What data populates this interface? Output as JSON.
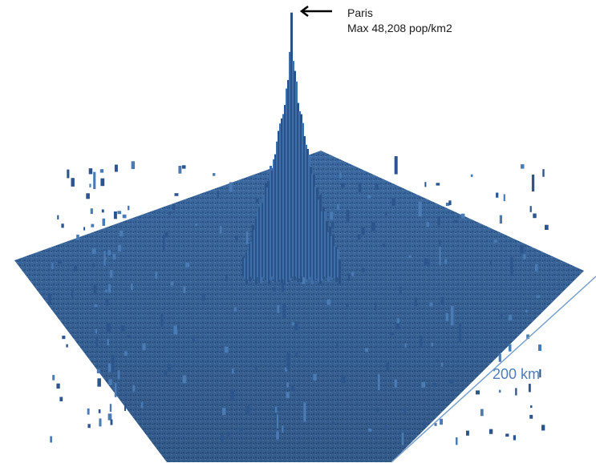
{
  "annotation": {
    "place": "Paris",
    "max_label": "Max 48,208 pop/km2"
  },
  "scale_bar": {
    "label": "200 km"
  },
  "colors": {
    "surface": "#3f6fa8",
    "surface_dark": "#24487a",
    "surface_light": "#6d95c6",
    "scale_line": "#7aa0cc",
    "scale_text": "#4f7db8",
    "arrow": "#000000"
  },
  "icons": {
    "pointer": "left-arrow-icon"
  }
}
